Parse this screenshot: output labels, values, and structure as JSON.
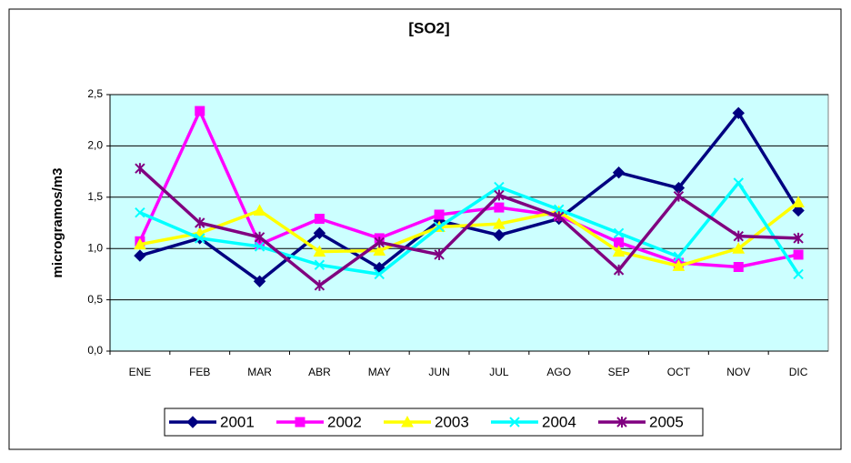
{
  "chart_data": {
    "type": "line",
    "title": "[SO2]",
    "y_label": "microgramos/m3",
    "categories": [
      "ENE",
      "FEB",
      "MAR",
      "ABR",
      "MAY",
      "JUN",
      "JUL",
      "AGO",
      "SEP",
      "OCT",
      "NOV",
      "DIC"
    ],
    "series": [
      {
        "name": "2001",
        "color": "#000080",
        "marker": "diamond",
        "values": [
          0.93,
          1.1,
          0.68,
          1.15,
          0.81,
          1.27,
          1.13,
          1.29,
          1.74,
          1.59,
          2.32,
          1.37
        ]
      },
      {
        "name": "2002",
        "color": "#ff00ff",
        "marker": "square",
        "values": [
          1.07,
          2.34,
          1.04,
          1.29,
          1.1,
          1.33,
          1.4,
          1.32,
          1.06,
          0.86,
          0.82,
          0.94
        ]
      },
      {
        "name": "2003",
        "color": "#ffff00",
        "marker": "triangle",
        "values": [
          1.04,
          1.15,
          1.37,
          0.97,
          0.98,
          1.21,
          1.24,
          1.36,
          0.97,
          0.83,
          1.0,
          1.45
        ]
      },
      {
        "name": "2004",
        "color": "#00ffff",
        "marker": "x",
        "values": [
          1.35,
          1.1,
          1.02,
          0.84,
          0.75,
          1.21,
          1.6,
          1.38,
          1.15,
          0.92,
          1.64,
          0.75
        ]
      },
      {
        "name": "2005",
        "color": "#800080",
        "marker": "star",
        "values": [
          1.78,
          1.25,
          1.11,
          0.64,
          1.06,
          0.94,
          1.52,
          1.31,
          0.79,
          1.51,
          1.12,
          1.1
        ]
      }
    ],
    "ylim": [
      0,
      2.5
    ],
    "yticks": [
      {
        "value": 0,
        "label": "0,0"
      },
      {
        "value": 0.5,
        "label": "0,5"
      },
      {
        "value": 1,
        "label": "1,0"
      },
      {
        "value": 1.5,
        "label": "1,5"
      },
      {
        "value": 2,
        "label": "2,0"
      },
      {
        "value": 2.5,
        "label": "2,5"
      }
    ],
    "grid": true,
    "legend": "bottom"
  }
}
